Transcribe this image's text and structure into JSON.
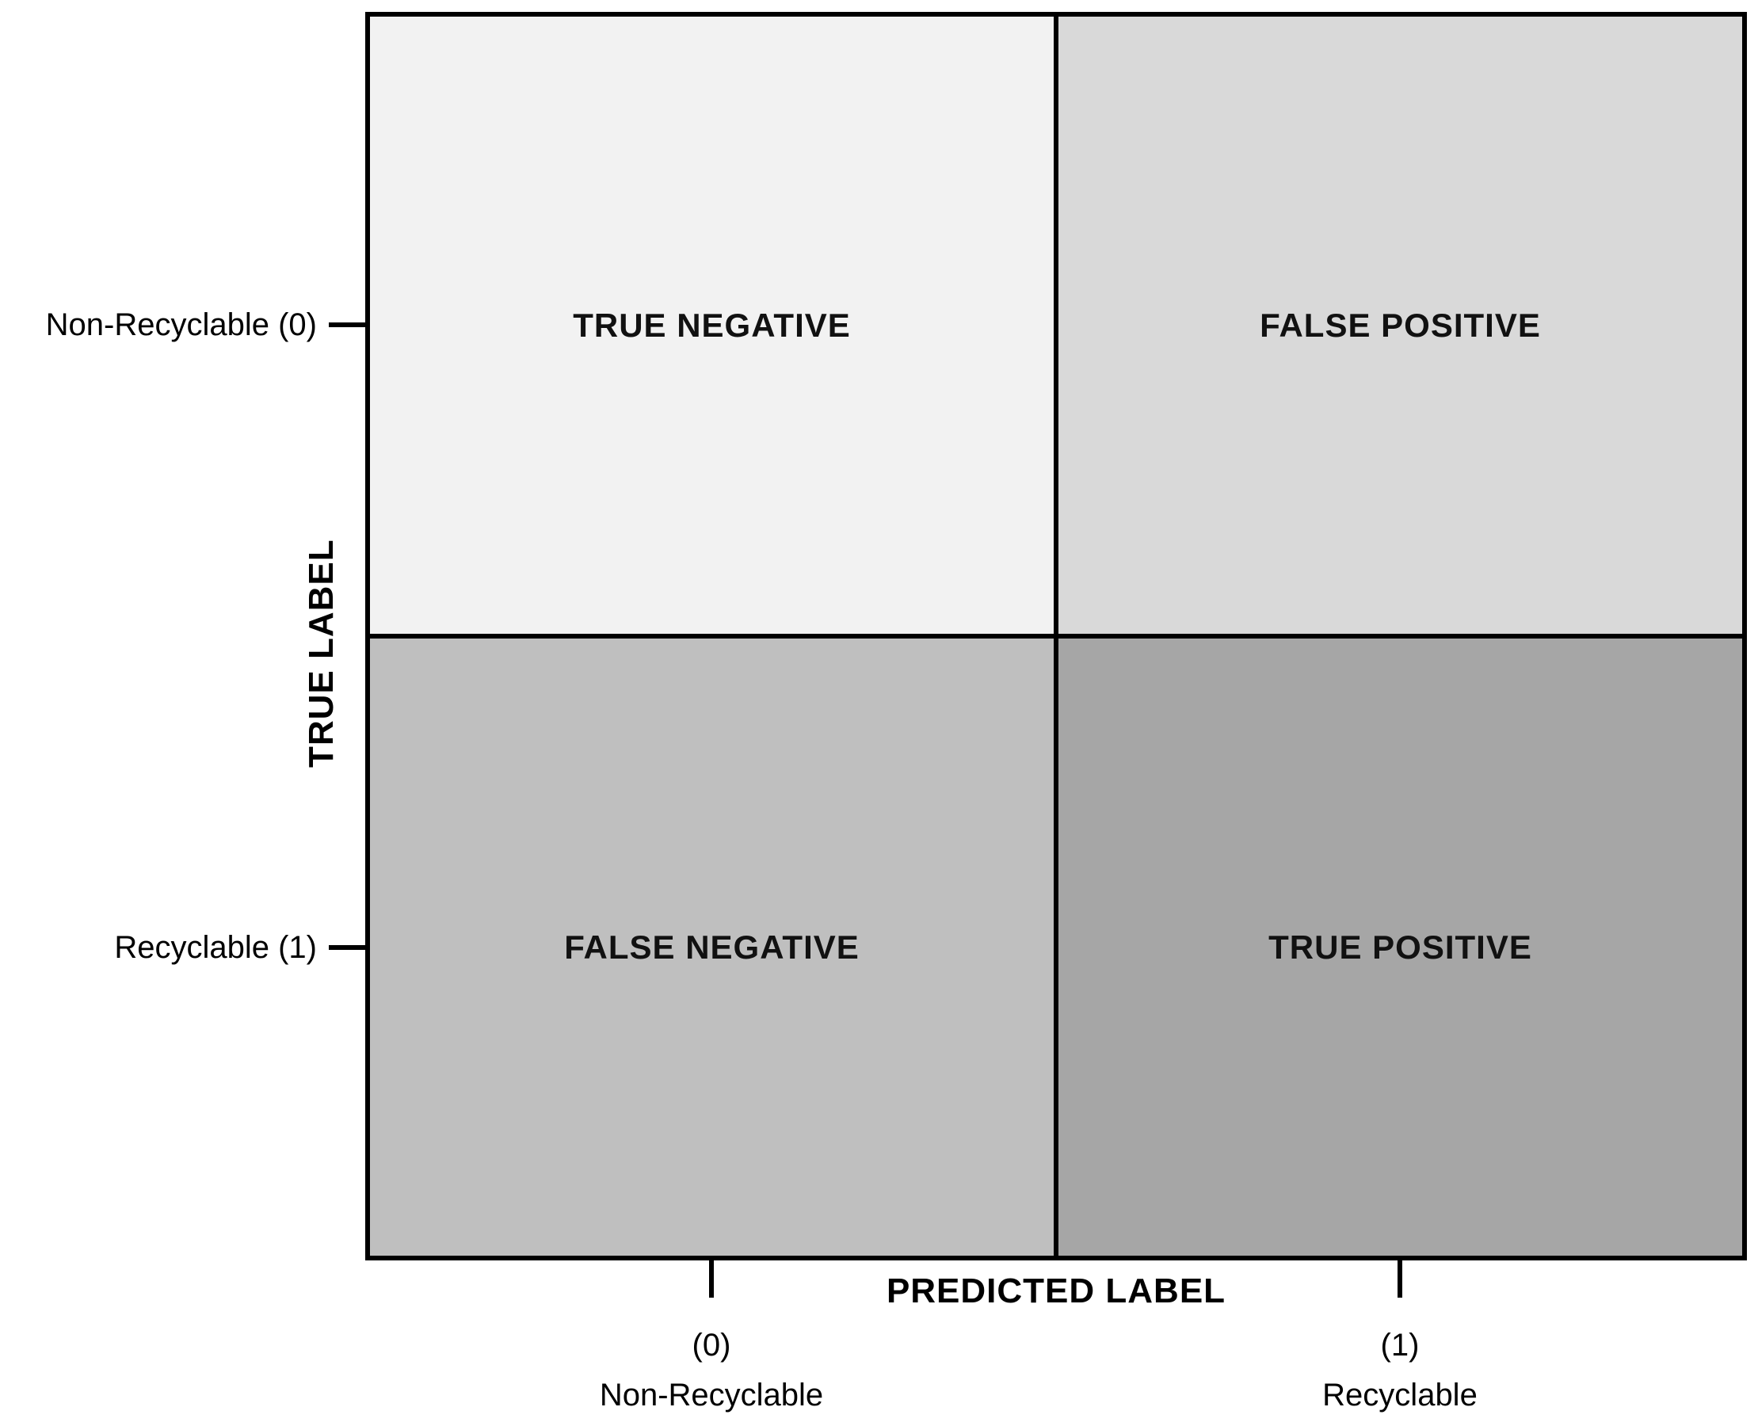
{
  "matrix": {
    "border_color": "#000000",
    "text_color": "#111111",
    "cells": [
      {
        "id": "true-negative",
        "label": "TRUE NEGATIVE",
        "color": "#F2F2F2"
      },
      {
        "id": "false-positive",
        "label": "FALSE POSITIVE",
        "color": "#D9D9D9"
      },
      {
        "id": "false-negative",
        "label": "FALSE NEGATIVE",
        "color": "#BFBFBF"
      },
      {
        "id": "true-positive",
        "label": "TRUE POSITIVE",
        "color": "#A6A6A6"
      }
    ]
  },
  "y_axis": {
    "title": "TRUE LABEL",
    "ticks": [
      {
        "label": "Non-Recyclable (0)"
      },
      {
        "label": "Recyclable (1)"
      }
    ]
  },
  "x_axis": {
    "title": "PREDICTED LABEL",
    "ticks": [
      {
        "value": "(0)",
        "label": "Non-Recyclable"
      },
      {
        "value": "(1)",
        "label": "Recyclable"
      }
    ]
  }
}
